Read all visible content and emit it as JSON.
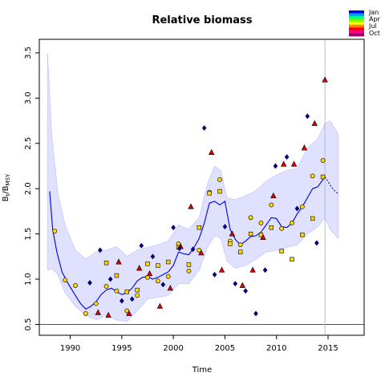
{
  "chart_data": {
    "type": "line",
    "title": "Relative biomass",
    "xlabel": "Time",
    "ylabel_main": "B",
    "ylabel_sub": "t",
    "ylabel_slash": "/B",
    "ylabel_sub2": "MSY",
    "xlim": [
      1987,
      2018.5
    ],
    "ylim": [
      0.38,
      3.65
    ],
    "x_ticks": [
      1990,
      1995,
      2000,
      2005,
      2010,
      2015
    ],
    "y_ticks": [
      0.5,
      1.0,
      1.5,
      2.0,
      2.5,
      3.0,
      3.5
    ],
    "x_tick_labels": [
      "1990",
      "1995",
      "2000",
      "2005",
      "2010",
      "2015"
    ],
    "y_tick_labels": [
      "0.5",
      "1.0",
      "1.5",
      "2.0",
      "2.5",
      "3.0",
      "3.5"
    ],
    "reference_hline": 0.5,
    "reference_vline": 2014.7,
    "legend": {
      "placement": "top-right",
      "labels": [
        "Jan",
        "Apr",
        "Jul",
        "Oct"
      ],
      "colors": [
        "#0000ff",
        "#00a0ff",
        "#00ff80",
        "#80ff00",
        "#ffff00",
        "#ff8000",
        "#ff0000",
        "#ff0080",
        "#a00070"
      ]
    },
    "colors": {
      "band": "#e0e0ff",
      "band_edge": "#c8c8ff",
      "line": "#0000dd",
      "diamond": "#00008b",
      "circle": "#ffd700",
      "square": "#ffd700",
      "triangle": "#dd0000"
    },
    "band_upper": {
      "x": [
        1987.8,
        1988.2,
        1988.8,
        1989.5,
        1990.5,
        1991.5,
        1992.5,
        1993.5,
        1994.5,
        1995.5,
        1996.5,
        1997.5,
        1998.5,
        1999.5,
        2000.5,
        2001.5,
        2002.5,
        2003.3,
        2004.0,
        2004.6,
        2005.2,
        2006.0,
        2007.0,
        2008.0,
        2009.0,
        2010.0,
        2011.0,
        2012.0,
        2013.0,
        2014.0,
        2014.7,
        2015.2,
        2016.0
      ],
      "y": [
        3.5,
        2.6,
        1.95,
        1.6,
        1.32,
        1.22,
        1.3,
        1.32,
        1.36,
        1.25,
        1.32,
        1.35,
        1.38,
        1.42,
        1.6,
        1.55,
        1.68,
        2.05,
        2.25,
        2.2,
        1.9,
        1.88,
        1.92,
        1.98,
        2.08,
        2.15,
        2.2,
        2.22,
        2.45,
        2.55,
        2.72,
        2.75,
        2.6
      ]
    },
    "band_lower": {
      "x": [
        1987.8,
        1988.2,
        1988.8,
        1989.5,
        1990.5,
        1991.5,
        1992.5,
        1993.5,
        1994.5,
        1995.5,
        1996.5,
        1997.5,
        1998.5,
        1999.5,
        2000.5,
        2001.5,
        2002.5,
        2003.3,
        2004.0,
        2004.6,
        2005.2,
        2006.0,
        2007.0,
        2008.0,
        2009.0,
        2010.0,
        2011.0,
        2012.0,
        2013.0,
        2014.0,
        2014.7,
        2015.2,
        2016.0
      ],
      "y": [
        1.1,
        1.12,
        1.05,
        0.85,
        0.7,
        0.6,
        0.55,
        0.6,
        0.55,
        0.53,
        0.65,
        0.78,
        0.8,
        0.82,
        0.95,
        0.95,
        1.1,
        1.35,
        1.48,
        1.45,
        1.2,
        1.12,
        1.15,
        1.22,
        1.3,
        1.32,
        1.35,
        1.38,
        1.5,
        1.58,
        1.68,
        1.55,
        1.45
      ]
    },
    "series": [
      {
        "line": "solid",
        "x": [
          1988.0,
          1988.3,
          1988.7,
          1989.2,
          1989.8,
          1990.5,
          1991.0,
          1991.5,
          1992.0,
          1992.5,
          1993.0,
          1993.5,
          1994.0,
          1994.5,
          1995.0,
          1995.5,
          1996.0,
          1996.5,
          1997.0,
          1997.5,
          1998.0,
          1998.5,
          1999.0,
          1999.5,
          2000.0,
          2000.5,
          2001.0,
          2001.5,
          2002.0,
          2002.5,
          2003.0,
          2003.5,
          2004.0,
          2004.5,
          2005.0,
          2005.5,
          2006.0,
          2006.5,
          2007.0,
          2007.5,
          2008.0,
          2008.5,
          2009.0,
          2009.5,
          2010.0,
          2010.5,
          2011.0,
          2011.5,
          2012.0,
          2012.5,
          2013.0,
          2013.5,
          2014.0,
          2014.5,
          2014.7
        ],
        "y": [
          1.97,
          1.55,
          1.3,
          1.08,
          0.95,
          0.82,
          0.73,
          0.67,
          0.7,
          0.75,
          0.83,
          0.88,
          0.9,
          0.86,
          0.83,
          0.85,
          0.9,
          0.98,
          1.02,
          1.03,
          1.0,
          1.02,
          1.05,
          1.08,
          1.15,
          1.3,
          1.28,
          1.27,
          1.35,
          1.45,
          1.62,
          1.84,
          1.86,
          1.82,
          1.86,
          1.55,
          1.44,
          1.38,
          1.42,
          1.47,
          1.48,
          1.52,
          1.6,
          1.68,
          1.67,
          1.58,
          1.57,
          1.62,
          1.72,
          1.8,
          1.9,
          2.0,
          2.02,
          2.1,
          2.13
        ]
      },
      {
        "line": "dotted",
        "x": [
          2014.7,
          2015.0,
          2015.3,
          2015.6,
          2016.0
        ],
        "y": [
          2.13,
          2.08,
          2.02,
          1.98,
          1.94
        ]
      }
    ],
    "points": {
      "diamond": [
        [
          1992.9,
          1.32
        ],
        [
          1993.9,
          1.0
        ],
        [
          1995.0,
          0.76
        ],
        [
          1996.9,
          1.37
        ],
        [
          1998.0,
          1.25
        ],
        [
          1999.0,
          0.94
        ],
        [
          2000.0,
          1.57
        ],
        [
          2001.9,
          1.33
        ],
        [
          2003.0,
          2.67
        ],
        [
          2004.0,
          1.05
        ],
        [
          2005.0,
          1.58
        ],
        [
          2006.0,
          0.95
        ],
        [
          2007.0,
          0.87
        ],
        [
          2008.0,
          0.62
        ],
        [
          2008.9,
          1.1
        ],
        [
          2009.9,
          2.25
        ],
        [
          2011.0,
          2.35
        ],
        [
          2012.0,
          1.78
        ],
        [
          2013.0,
          2.8
        ],
        [
          2013.9,
          1.4
        ],
        [
          1991.9,
          0.96
        ],
        [
          1996.0,
          0.78
        ],
        [
          2000.6,
          1.34
        ]
      ],
      "circle": [
        [
          1988.5,
          1.53
        ],
        [
          1989.5,
          0.99
        ],
        [
          1990.5,
          0.93
        ],
        [
          1991.5,
          0.62
        ],
        [
          1992.5,
          0.73
        ],
        [
          1993.5,
          0.92
        ],
        [
          1994.5,
          0.87
        ],
        [
          1995.5,
          0.65
        ],
        [
          1996.5,
          0.82
        ],
        [
          1997.5,
          1.02
        ],
        [
          1998.5,
          0.98
        ],
        [
          1999.5,
          1.03
        ],
        [
          2000.5,
          1.39
        ],
        [
          2001.5,
          1.09
        ],
        [
          2002.5,
          1.32
        ],
        [
          2003.5,
          1.96
        ],
        [
          2004.5,
          2.1
        ],
        [
          2005.5,
          1.42
        ],
        [
          2006.5,
          1.38
        ],
        [
          2007.5,
          1.68
        ],
        [
          2008.5,
          1.62
        ],
        [
          2009.5,
          1.82
        ],
        [
          2010.5,
          1.56
        ],
        [
          2011.5,
          1.62
        ],
        [
          2012.5,
          1.8
        ],
        [
          2013.5,
          2.14
        ],
        [
          2014.5,
          2.31
        ]
      ],
      "square": [
        [
          1993.5,
          1.18
        ],
        [
          1994.5,
          1.04
        ],
        [
          1995.5,
          0.86
        ],
        [
          1996.5,
          0.88
        ],
        [
          1997.5,
          1.17
        ],
        [
          1998.5,
          1.15
        ],
        [
          1999.5,
          1.19
        ],
        [
          2000.5,
          1.35
        ],
        [
          2001.5,
          1.16
        ],
        [
          2002.5,
          1.57
        ],
        [
          2003.5,
          1.95
        ],
        [
          2004.5,
          1.97
        ],
        [
          2005.5,
          1.39
        ],
        [
          2006.5,
          1.3
        ],
        [
          2007.5,
          1.5
        ],
        [
          2008.5,
          1.49
        ],
        [
          2009.5,
          1.57
        ],
        [
          2010.5,
          1.31
        ],
        [
          2011.5,
          1.22
        ],
        [
          2012.5,
          1.49
        ],
        [
          2013.5,
          1.67
        ],
        [
          2014.5,
          2.13
        ]
      ],
      "triangle": [
        [
          1992.7,
          0.63
        ],
        [
          1993.7,
          0.6
        ],
        [
          1994.7,
          1.19
        ],
        [
          1995.7,
          0.62
        ],
        [
          1996.7,
          1.12
        ],
        [
          1997.7,
          1.06
        ],
        [
          1998.7,
          0.7
        ],
        [
          1999.7,
          0.9
        ],
        [
          2000.7,
          1.36
        ],
        [
          2001.7,
          1.8
        ],
        [
          2002.7,
          1.29
        ],
        [
          2003.7,
          2.4
        ],
        [
          2004.7,
          1.1
        ],
        [
          2005.7,
          1.5
        ],
        [
          2006.7,
          0.93
        ],
        [
          2007.7,
          1.1
        ],
        [
          2008.7,
          1.46
        ],
        [
          2009.7,
          1.92
        ],
        [
          2010.7,
          2.27
        ],
        [
          2011.7,
          2.27
        ],
        [
          2012.7,
          2.45
        ],
        [
          2013.7,
          2.72
        ],
        [
          2014.7,
          3.2
        ]
      ]
    }
  }
}
